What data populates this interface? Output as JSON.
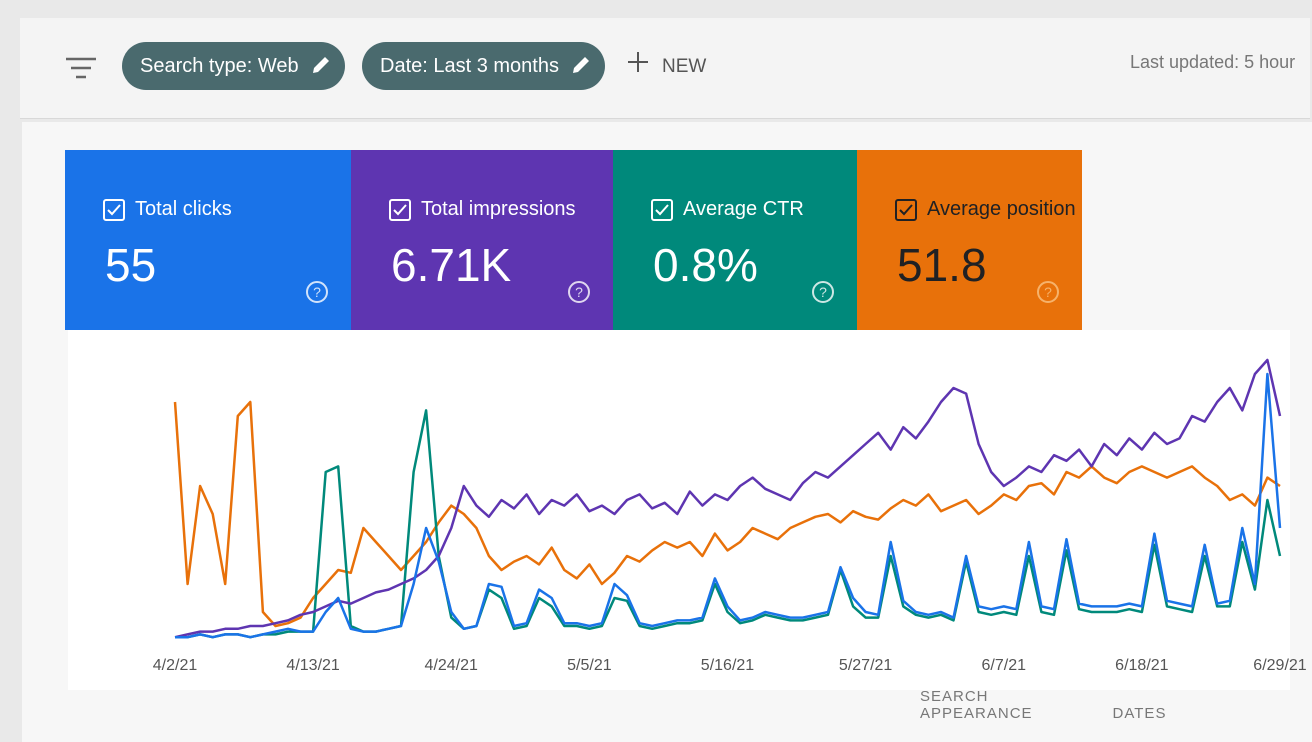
{
  "toolbar": {
    "chips": [
      "Search type: Web",
      "Date: Last 3 months"
    ],
    "new_button": "NEW",
    "last_updated": "Last updated: 5 hour"
  },
  "tabs": [
    "SEARCH APPEARANCE",
    "DATES"
  ],
  "chart_data": {
    "type": "line",
    "grid": false,
    "ylim": [
      0,
      100
    ],
    "categories": [
      "4/2/21",
      null,
      null,
      null,
      null,
      null,
      null,
      null,
      null,
      null,
      null,
      "4/13/21",
      null,
      null,
      null,
      null,
      null,
      null,
      null,
      null,
      null,
      null,
      "4/24/21",
      null,
      null,
      null,
      null,
      null,
      null,
      null,
      null,
      null,
      null,
      "5/5/21",
      null,
      null,
      null,
      null,
      null,
      null,
      null,
      null,
      null,
      null,
      "5/16/21",
      null,
      null,
      null,
      null,
      null,
      null,
      null,
      null,
      null,
      null,
      "5/27/21",
      null,
      null,
      null,
      null,
      null,
      null,
      null,
      null,
      null,
      null,
      "6/7/21",
      null,
      null,
      null,
      null,
      null,
      null,
      null,
      null,
      null,
      null,
      "6/18/21",
      null,
      null,
      null,
      null,
      null,
      null,
      null,
      null,
      null,
      null,
      "6/29/21"
    ],
    "series": [
      {
        "name": "Total clicks",
        "summary": "55",
        "color": "#1a73e8",
        "values": [
          1,
          1,
          2,
          1,
          2,
          2,
          1,
          2,
          3,
          4,
          3,
          3,
          10,
          15,
          4,
          3,
          3,
          4,
          5,
          20,
          40,
          28,
          10,
          4,
          5,
          20,
          19,
          5,
          6,
          18,
          15,
          6,
          6,
          5,
          6,
          20,
          16,
          6,
          5,
          6,
          7,
          7,
          8,
          22,
          12,
          7,
          8,
          10,
          9,
          8,
          8,
          9,
          10,
          26,
          15,
          10,
          9,
          35,
          14,
          10,
          9,
          10,
          8,
          30,
          12,
          11,
          12,
          11,
          35,
          12,
          11,
          36,
          13,
          12,
          12,
          12,
          13,
          12,
          38,
          14,
          13,
          12,
          34,
          13,
          14,
          40,
          20,
          95,
          40
        ]
      },
      {
        "name": "Total impressions",
        "summary": "6.71K",
        "color": "#5e35b1",
        "values": [
          1,
          2,
          3,
          3,
          4,
          4,
          5,
          5,
          6,
          7,
          9,
          10,
          12,
          14,
          13,
          15,
          17,
          18,
          20,
          22,
          25,
          30,
          40,
          55,
          48,
          44,
          50,
          47,
          52,
          45,
          50,
          48,
          52,
          46,
          48,
          45,
          50,
          52,
          47,
          49,
          45,
          53,
          48,
          52,
          50,
          55,
          58,
          54,
          52,
          50,
          56,
          60,
          58,
          62,
          66,
          70,
          74,
          68,
          76,
          72,
          78,
          85,
          90,
          88,
          70,
          60,
          55,
          58,
          62,
          60,
          66,
          64,
          68,
          62,
          70,
          66,
          72,
          68,
          74,
          70,
          72,
          80,
          78,
          85,
          90,
          82,
          95,
          100,
          80
        ]
      },
      {
        "name": "Average CTR",
        "summary": "0.8%",
        "color": "#00897b",
        "values": [
          1,
          1,
          2,
          1,
          2,
          2,
          1,
          2,
          2,
          3,
          3,
          3,
          60,
          62,
          5,
          3,
          3,
          4,
          5,
          60,
          82,
          30,
          8,
          4,
          5,
          18,
          15,
          4,
          5,
          15,
          12,
          5,
          5,
          4,
          5,
          15,
          14,
          5,
          4,
          5,
          6,
          6,
          7,
          20,
          10,
          6,
          7,
          9,
          8,
          7,
          7,
          8,
          9,
          25,
          12,
          8,
          8,
          30,
          12,
          9,
          8,
          9,
          7,
          28,
          10,
          9,
          10,
          9,
          30,
          10,
          9,
          32,
          11,
          10,
          10,
          10,
          11,
          10,
          34,
          12,
          11,
          10,
          30,
          12,
          12,
          35,
          18,
          50,
          30
        ]
      },
      {
        "name": "Average position",
        "summary": "51.8",
        "color": "#e8710a",
        "values": [
          85,
          20,
          55,
          45,
          20,
          80,
          85,
          10,
          5,
          6,
          8,
          15,
          20,
          25,
          24,
          40,
          35,
          30,
          25,
          30,
          35,
          42,
          48,
          45,
          40,
          30,
          25,
          28,
          30,
          27,
          33,
          25,
          22,
          27,
          20,
          24,
          30,
          28,
          32,
          35,
          33,
          35,
          30,
          38,
          32,
          35,
          40,
          38,
          36,
          40,
          42,
          44,
          45,
          42,
          46,
          44,
          43,
          47,
          50,
          48,
          52,
          46,
          48,
          50,
          45,
          48,
          52,
          50,
          55,
          56,
          52,
          60,
          58,
          62,
          58,
          56,
          60,
          62,
          60,
          58,
          60,
          62,
          58,
          55,
          50,
          52,
          48,
          58,
          55
        ]
      }
    ]
  }
}
